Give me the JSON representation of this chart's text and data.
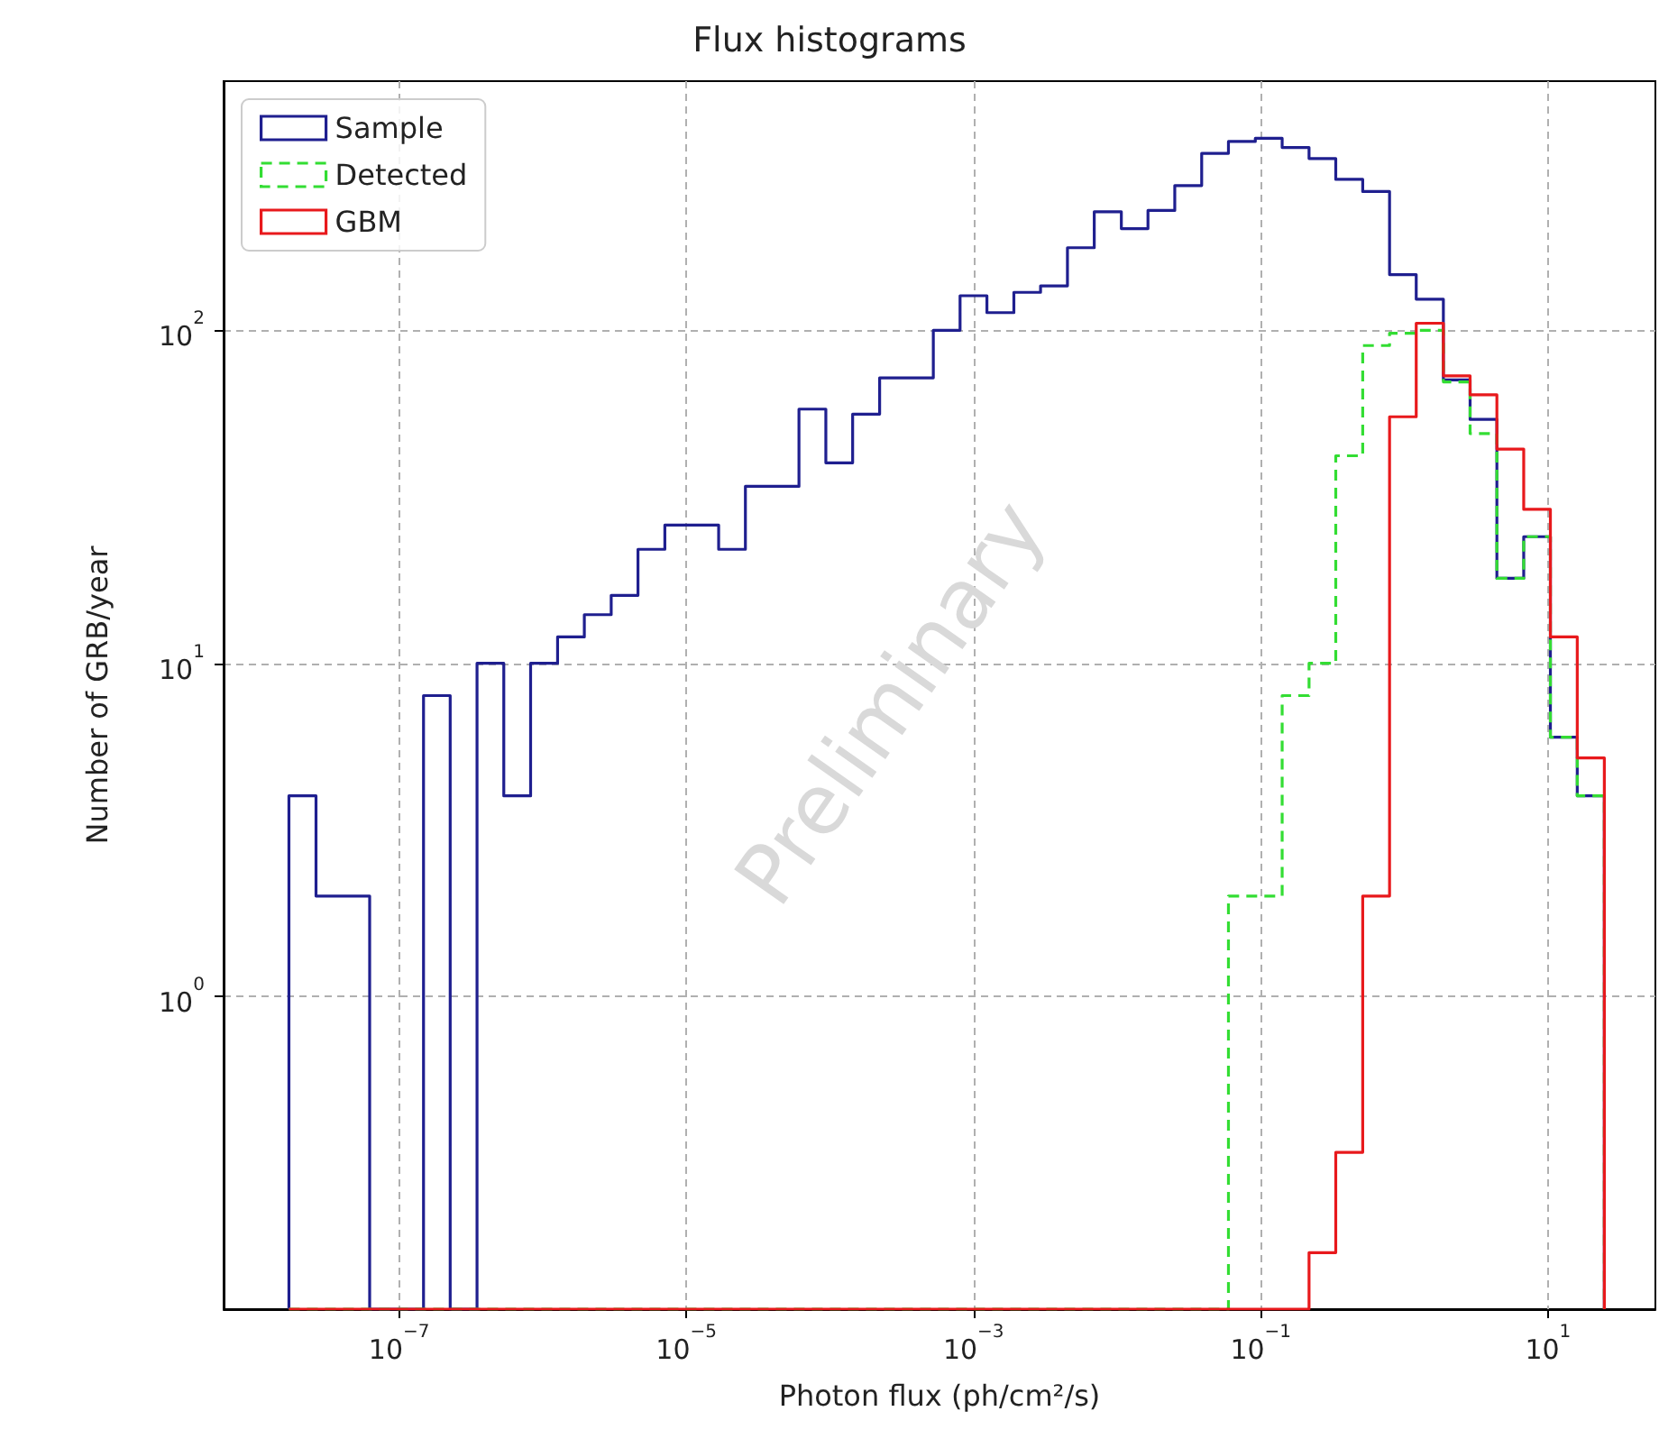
{
  "chart_data": {
    "type": "histogram",
    "title": "Flux histograms",
    "xlabel": "Photon flux (ph/cm²/s)",
    "ylabel": "Number of GRB/year",
    "log": "xy",
    "grid": true,
    "legend": "top left",
    "xlim": [
      6e-09,
      56
    ],
    "ylim": [
      0.115,
      560
    ],
    "xticks": [
      {
        "value": 1e-07,
        "label": "10$^{−7}$"
      },
      {
        "value": 1e-05,
        "label": "10$^{−5}$"
      },
      {
        "value": 0.001,
        "label": "10$^{−3}$"
      },
      {
        "value": 0.1,
        "label": "10$^{−1}$"
      },
      {
        "value": 10,
        "label": "10$^{1}$"
      }
    ],
    "yticks": [
      {
        "value": 1,
        "label": "10$^{0}$"
      },
      {
        "value": 10,
        "label": "10$^{1}$"
      },
      {
        "value": 100,
        "label": "10$^{2}$"
      }
    ],
    "bins": [
      1.71e-08,
      2.64e-08,
      4.06e-08,
      6.24e-08,
      9.59e-08,
      1.48e-07,
      2.27e-07,
      3.49e-07,
      5.36e-07,
      8.24e-07,
      1.27e-06,
      1.95e-06,
      3e-06,
      4.61e-06,
      7.09e-06,
      1.09e-05,
      1.68e-05,
      2.58e-05,
      3.96e-05,
      6.09e-05,
      9.37e-05,
      0.000144,
      0.000222,
      0.000341,
      0.000525,
      0.000806,
      0.00124,
      0.00191,
      0.00293,
      0.00451,
      0.00693,
      0.0107,
      0.0164,
      0.0252,
      0.0388,
      0.0596,
      0.0917,
      0.141,
      0.217,
      0.333,
      0.513,
      0.789,
      1.21,
      1.87,
      2.87,
      4.41,
      6.78,
      10.4,
      16.0,
      24.7
    ],
    "series": [
      {
        "name": "Sample",
        "color": "#1f1f8f",
        "line_style": "solid",
        "values": [
          4,
          2,
          2,
          null,
          null,
          8,
          null,
          10,
          4,
          10,
          12,
          14,
          16,
          22,
          26,
          26,
          22,
          34,
          34,
          58,
          40,
          56,
          72,
          72,
          100,
          127,
          113,
          130,
          136,
          177,
          227,
          202,
          229,
          272,
          340,
          369,
          377,
          354,
          328,
          284,
          261,
          147,
          124,
          71,
          54,
          18,
          24,
          6,
          4
        ]
      },
      {
        "name": "Detected",
        "color": "#33dd33",
        "line_style": "dashed",
        "values": [
          null,
          null,
          null,
          null,
          null,
          null,
          null,
          null,
          null,
          null,
          null,
          null,
          null,
          null,
          null,
          null,
          null,
          null,
          null,
          null,
          null,
          null,
          null,
          null,
          null,
          null,
          null,
          null,
          null,
          null,
          null,
          null,
          null,
          null,
          null,
          2,
          2,
          8,
          10,
          42,
          90,
          98,
          100,
          70,
          49,
          18,
          24,
          6,
          4
        ]
      },
      {
        "name": "GBM",
        "color": "#e8191c",
        "line_style": "solid",
        "values": [
          null,
          null,
          null,
          null,
          null,
          null,
          null,
          null,
          null,
          null,
          null,
          null,
          null,
          null,
          null,
          null,
          null,
          null,
          null,
          null,
          null,
          null,
          null,
          null,
          null,
          null,
          null,
          null,
          null,
          null,
          null,
          null,
          null,
          null,
          null,
          null,
          null,
          null,
          0.17,
          0.34,
          2,
          55,
          105,
          73,
          64,
          44,
          29,
          12,
          5.2
        ]
      }
    ],
    "annotations": [
      "Preliminary"
    ]
  }
}
